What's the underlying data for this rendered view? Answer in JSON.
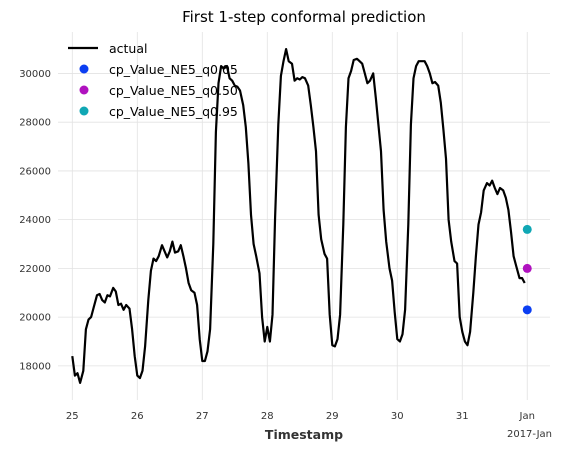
{
  "chart_data": {
    "type": "line",
    "title": "First 1-step conformal prediction",
    "xlabel": "Timestamp",
    "ylabel": "",
    "x_ticks": [
      "25",
      "26",
      "27",
      "28",
      "29",
      "30",
      "31",
      "Jan"
    ],
    "x_tick_positions": [
      25,
      26,
      27,
      28,
      29,
      30,
      31,
      32
    ],
    "x_offset_label": "2017-Jan",
    "xlim": [
      24.78,
      32.35
    ],
    "y_ticks": [
      18000,
      20000,
      22000,
      24000,
      26000,
      28000,
      30000
    ],
    "y_tick_labels": [
      "18000",
      "20000",
      "22000",
      "24000",
      "26000",
      "28000",
      "30000"
    ],
    "ylim": [
      16600,
      31700
    ],
    "grid": true,
    "legend_position": "top-left",
    "colors": {
      "actual": "#000000",
      "q005": "#0b3ef2",
      "q050": "#b012bf",
      "q095": "#10a7b4",
      "grid": "#e2e2e2"
    },
    "series": [
      {
        "name": "actual",
        "kind": "line",
        "x": [
          25.0,
          25.04,
          25.08,
          25.12,
          25.17,
          25.21,
          25.25,
          25.29,
          25.33,
          25.38,
          25.42,
          25.46,
          25.5,
          25.54,
          25.58,
          25.63,
          25.67,
          25.71,
          25.75,
          25.79,
          25.83,
          25.88,
          25.92,
          25.96,
          26.0,
          26.04,
          26.08,
          26.12,
          26.17,
          26.21,
          26.25,
          26.29,
          26.33,
          26.38,
          26.42,
          26.46,
          26.5,
          26.54,
          26.58,
          26.63,
          26.67,
          26.71,
          26.75,
          26.79,
          26.83,
          26.88,
          26.92,
          26.96,
          27.0,
          27.04,
          27.08,
          27.12,
          27.17,
          27.21,
          27.25,
          27.29,
          27.33,
          27.38,
          27.42,
          27.46,
          27.5,
          27.54,
          27.58,
          27.63,
          27.67,
          27.71,
          27.75,
          27.79,
          27.83,
          27.88,
          27.92,
          27.96,
          28.0,
          28.04,
          28.08,
          28.12,
          28.17,
          28.21,
          28.25,
          28.29,
          28.33,
          28.38,
          28.42,
          28.46,
          28.5,
          28.54,
          28.58,
          28.63,
          28.67,
          28.71,
          28.75,
          28.79,
          28.83,
          28.88,
          28.92,
          28.96,
          29.0,
          29.04,
          29.08,
          29.12,
          29.17,
          29.21,
          29.25,
          29.29,
          29.33,
          29.38,
          29.42,
          29.46,
          29.5,
          29.54,
          29.58,
          29.63,
          29.67,
          29.71,
          29.75,
          29.79,
          29.83,
          29.88,
          29.92,
          29.96,
          30.0,
          30.04,
          30.08,
          30.12,
          30.17,
          30.21,
          30.25,
          30.29,
          30.33,
          30.38,
          30.42,
          30.46,
          30.5,
          30.54,
          30.58,
          30.63,
          30.67,
          30.71,
          30.75,
          30.79,
          30.83,
          30.88,
          30.92,
          30.96,
          31.0,
          31.04,
          31.08,
          31.12,
          31.17,
          31.21,
          31.25,
          31.29,
          31.33,
          31.38,
          31.42,
          31.46,
          31.5,
          31.54,
          31.58,
          31.63,
          31.67,
          31.71,
          31.75,
          31.79,
          31.83,
          31.88,
          31.92,
          31.96
        ],
        "y": [
          18400,
          17600,
          17700,
          17300,
          17800,
          19500,
          19900,
          20000,
          20400,
          20900,
          20950,
          20700,
          20600,
          20900,
          20850,
          21200,
          21050,
          20500,
          20550,
          20300,
          20500,
          20350,
          19500,
          18400,
          17600,
          17500,
          17800,
          18800,
          20700,
          21900,
          22400,
          22300,
          22500,
          22950,
          22700,
          22450,
          22700,
          23100,
          22650,
          22700,
          22950,
          22500,
          22000,
          21400,
          21100,
          21000,
          20500,
          19100,
          18200,
          18200,
          18600,
          19500,
          23000,
          27600,
          29600,
          30300,
          30200,
          30300,
          29800,
          29700,
          29500,
          29450,
          29300,
          28700,
          27800,
          26300,
          24200,
          23000,
          22500,
          21800,
          20000,
          19000,
          19600,
          19000,
          20100,
          24100,
          27900,
          29900,
          30500,
          31000,
          30500,
          30400,
          29700,
          29800,
          29750,
          29850,
          29800,
          29500,
          28700,
          27800,
          26800,
          24200,
          23200,
          22600,
          22400,
          20100,
          18850,
          18800,
          19100,
          20100,
          23800,
          27800,
          29800,
          30100,
          30550,
          30600,
          30500,
          30400,
          30000,
          29600,
          29700,
          30000,
          29000,
          27900,
          26800,
          24400,
          23100,
          22000,
          21500,
          20200,
          19100,
          19000,
          19300,
          20300,
          23800,
          27900,
          29800,
          30300,
          30500,
          30500,
          30500,
          30300,
          30000,
          29600,
          29650,
          29500,
          28800,
          27700,
          26500,
          24000,
          23100,
          22300,
          22200,
          20000,
          19400,
          19000,
          18850,
          19400,
          21000,
          22500,
          23800,
          24300,
          25200,
          25500,
          25400,
          25600,
          25300,
          25050,
          25300,
          25200,
          24900,
          24400,
          23500,
          22500,
          22100,
          21600,
          21600,
          21400
        ]
      },
      {
        "name": "cp_Value_NE5_q0.05",
        "kind": "point",
        "x": [
          32.0
        ],
        "y": [
          20300
        ]
      },
      {
        "name": "cp_Value_NE5_q0.50",
        "kind": "point",
        "x": [
          32.0
        ],
        "y": [
          22000
        ]
      },
      {
        "name": "cp_Value_NE5_q0.95",
        "kind": "point",
        "x": [
          32.0
        ],
        "y": [
          23600
        ]
      }
    ]
  }
}
